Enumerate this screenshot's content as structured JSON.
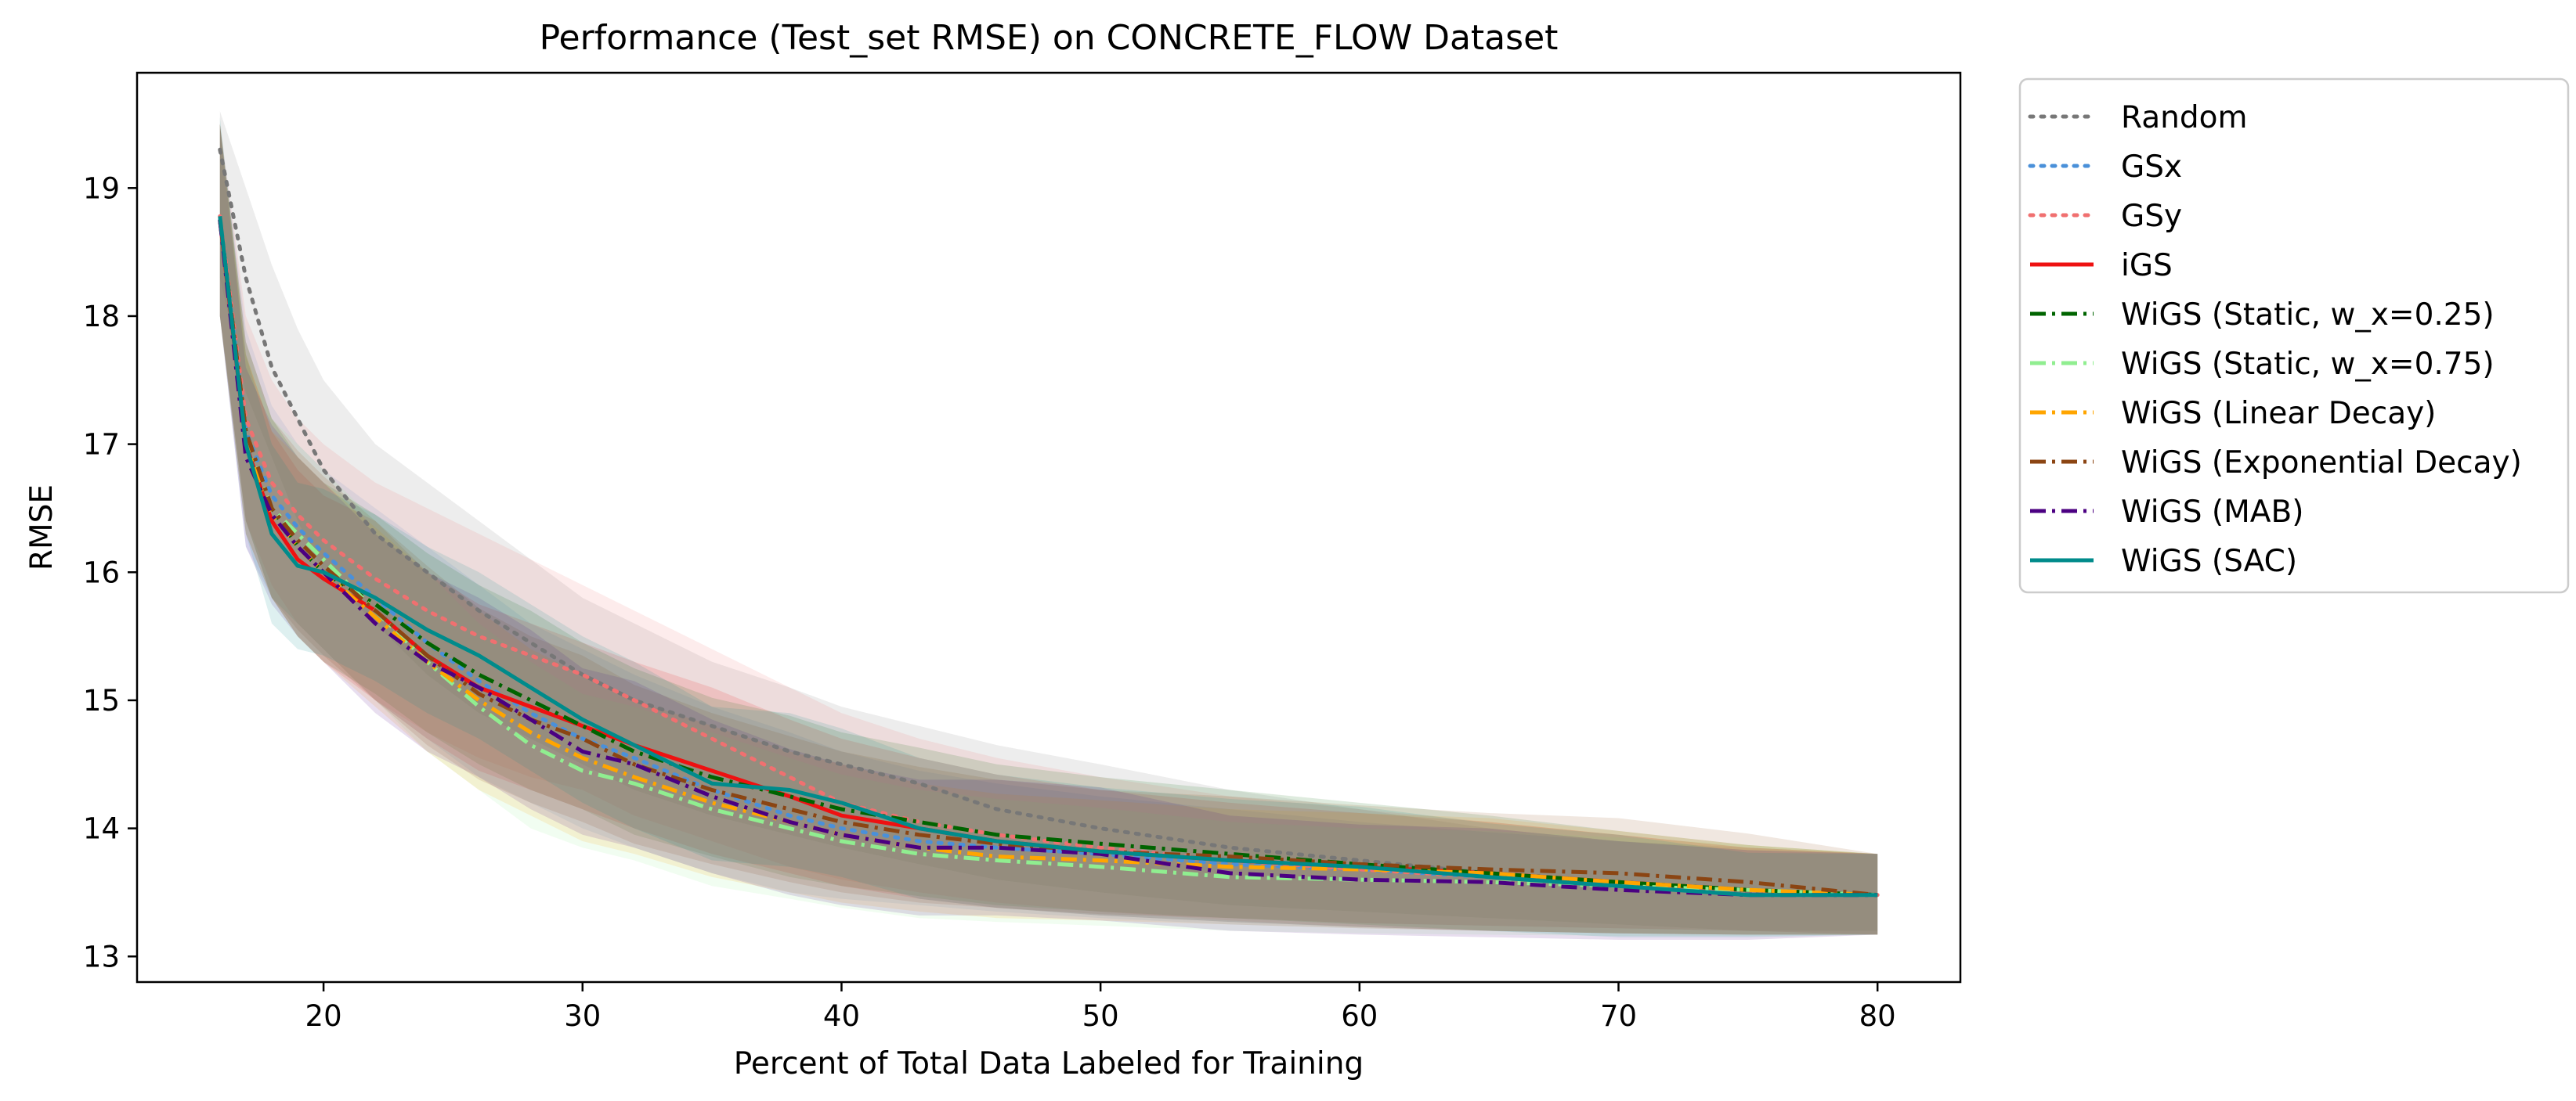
{
  "chart_data": {
    "type": "line",
    "title": "Performance (Test_set RMSE) on CONCRETE_FLOW Dataset",
    "xlabel": "Percent of Total Data Labeled for Training",
    "ylabel": "RMSE",
    "xlim": [
      12.8,
      83.2
    ],
    "ylim": [
      12.8,
      19.9
    ],
    "xticks": [
      20,
      30,
      40,
      50,
      60,
      70,
      80
    ],
    "yticks": [
      13,
      14,
      15,
      16,
      17,
      18,
      19
    ],
    "grid": false,
    "legend_position": "outside-right-top",
    "shaded_bands": "mean ± std per series",
    "x": [
      16,
      17,
      18,
      19,
      20,
      22,
      24,
      26,
      28,
      30,
      32,
      35,
      38,
      40,
      43,
      46,
      50,
      55,
      60,
      65,
      70,
      75,
      80
    ],
    "series": [
      {
        "name": "Random",
        "color": "#777777",
        "style": "dotted",
        "values": [
          19.3,
          18.3,
          17.6,
          17.2,
          16.8,
          16.3,
          16.0,
          15.7,
          15.45,
          15.2,
          15.0,
          14.8,
          14.6,
          14.5,
          14.35,
          14.15,
          14.0,
          13.85,
          13.75,
          13.65,
          13.57,
          13.5,
          13.48
        ],
        "lower": [
          18.3,
          17.4,
          16.9,
          16.4,
          16.0,
          15.6,
          15.2,
          14.9,
          14.7,
          14.5,
          14.3,
          14.1,
          13.95,
          13.85,
          13.72,
          13.6,
          13.5,
          13.4,
          13.35,
          13.3,
          13.25,
          13.2,
          13.2
        ],
        "upper": [
          19.6,
          19.0,
          18.4,
          17.9,
          17.5,
          17.0,
          16.7,
          16.4,
          16.1,
          15.8,
          15.6,
          15.3,
          15.1,
          14.95,
          14.8,
          14.65,
          14.5,
          14.3,
          14.15,
          14.0,
          13.9,
          13.85,
          13.8
        ]
      },
      {
        "name": "GSx",
        "color": "#4a90d9",
        "style": "dotted",
        "values": [
          18.75,
          17.1,
          16.6,
          16.35,
          16.15,
          15.8,
          15.45,
          15.15,
          14.9,
          14.7,
          14.55,
          14.3,
          14.1,
          14.0,
          13.9,
          13.85,
          13.8,
          13.72,
          13.68,
          13.62,
          13.58,
          13.52,
          13.48
        ],
        "lower": [
          18.0,
          16.2,
          15.8,
          15.6,
          15.4,
          15.0,
          14.7,
          14.4,
          14.2,
          14.0,
          13.85,
          13.65,
          13.5,
          13.45,
          13.4,
          13.35,
          13.3,
          13.25,
          13.22,
          13.2,
          13.18,
          13.17,
          13.17
        ],
        "upper": [
          19.5,
          17.9,
          17.3,
          17.0,
          16.8,
          16.5,
          16.2,
          15.9,
          15.6,
          15.4,
          15.2,
          14.95,
          14.75,
          14.6,
          14.45,
          14.35,
          14.25,
          14.15,
          14.05,
          13.97,
          13.9,
          13.83,
          13.8
        ]
      },
      {
        "name": "GSy",
        "color": "#f07070",
        "style": "dotted",
        "values": [
          18.78,
          17.2,
          16.7,
          16.45,
          16.25,
          15.95,
          15.7,
          15.5,
          15.35,
          15.2,
          15.0,
          14.7,
          14.4,
          14.2,
          14.05,
          13.95,
          13.85,
          13.75,
          13.68,
          13.62,
          13.57,
          13.52,
          13.48
        ],
        "lower": [
          18.0,
          16.4,
          15.9,
          15.6,
          15.4,
          15.0,
          14.75,
          14.55,
          14.4,
          14.3,
          14.1,
          13.9,
          13.7,
          13.6,
          13.5,
          13.42,
          13.35,
          13.28,
          13.23,
          13.2,
          13.18,
          13.17,
          13.17
        ],
        "upper": [
          19.5,
          18.0,
          17.5,
          17.2,
          17.0,
          16.7,
          16.5,
          16.3,
          16.1,
          15.9,
          15.7,
          15.4,
          15.1,
          14.9,
          14.7,
          14.55,
          14.4,
          14.25,
          14.15,
          14.05,
          13.95,
          13.85,
          13.8
        ]
      },
      {
        "name": "iGS",
        "color": "#ee1111",
        "style": "solid",
        "values": [
          18.75,
          17.0,
          16.4,
          16.1,
          15.95,
          15.7,
          15.35,
          15.1,
          14.95,
          14.8,
          14.65,
          14.45,
          14.25,
          14.1,
          14.0,
          13.9,
          13.82,
          13.75,
          13.7,
          13.65,
          13.58,
          13.52,
          13.48
        ],
        "lower": [
          18.0,
          16.3,
          15.8,
          15.5,
          15.3,
          15.0,
          14.7,
          14.45,
          14.3,
          14.15,
          14.0,
          13.8,
          13.65,
          13.55,
          13.45,
          13.38,
          13.32,
          13.27,
          13.23,
          13.2,
          13.18,
          13.17,
          13.17
        ],
        "upper": [
          19.5,
          17.7,
          17.1,
          16.8,
          16.6,
          16.4,
          16.0,
          15.75,
          15.6,
          15.45,
          15.3,
          15.1,
          14.85,
          14.7,
          14.55,
          14.42,
          14.3,
          14.2,
          14.12,
          14.05,
          13.95,
          13.85,
          13.8
        ]
      },
      {
        "name": "WiGS (Static, w_x=0.25)",
        "color": "#006400",
        "style": "dashdot",
        "values": [
          18.75,
          17.1,
          16.5,
          16.2,
          16.0,
          15.75,
          15.45,
          15.2,
          15.0,
          14.8,
          14.6,
          14.4,
          14.25,
          14.15,
          14.05,
          13.95,
          13.88,
          13.8,
          13.72,
          13.65,
          13.58,
          13.52,
          13.48
        ],
        "lower": [
          18.0,
          16.4,
          15.8,
          15.5,
          15.3,
          15.05,
          14.75,
          14.5,
          14.3,
          14.15,
          13.95,
          13.78,
          13.62,
          13.55,
          13.47,
          13.4,
          13.35,
          13.3,
          13.25,
          13.2,
          13.18,
          13.17,
          13.17
        ],
        "upper": [
          19.5,
          17.8,
          17.2,
          16.9,
          16.7,
          16.45,
          16.15,
          15.9,
          15.7,
          15.45,
          15.25,
          15.02,
          14.88,
          14.75,
          14.63,
          14.5,
          14.4,
          14.3,
          14.2,
          14.1,
          13.98,
          13.87,
          13.8
        ]
      },
      {
        "name": "WiGS (Static, w_x=0.75)",
        "color": "#90ee90",
        "style": "dashdot",
        "values": [
          18.75,
          17.0,
          16.5,
          16.3,
          16.1,
          15.7,
          15.3,
          14.95,
          14.65,
          14.45,
          14.35,
          14.15,
          14.0,
          13.9,
          13.8,
          13.75,
          13.7,
          13.62,
          13.6,
          13.58,
          13.55,
          13.52,
          13.48
        ],
        "lower": [
          18.0,
          16.3,
          15.8,
          15.6,
          15.4,
          15.0,
          14.6,
          14.3,
          14.0,
          13.85,
          13.75,
          13.55,
          13.45,
          13.38,
          13.3,
          13.27,
          13.24,
          13.2,
          13.18,
          13.17,
          13.16,
          13.16,
          13.17
        ],
        "upper": [
          19.5,
          17.7,
          17.2,
          17.0,
          16.8,
          16.4,
          16.0,
          15.6,
          15.3,
          15.05,
          14.95,
          14.75,
          14.55,
          14.42,
          14.3,
          14.23,
          14.16,
          14.05,
          14.0,
          13.98,
          13.93,
          13.87,
          13.8
        ]
      },
      {
        "name": "WiGS (Linear Decay)",
        "color": "#ffa500",
        "style": "dashdot",
        "values": [
          18.75,
          17.0,
          16.45,
          16.2,
          16.0,
          15.65,
          15.3,
          15.0,
          14.75,
          14.55,
          14.4,
          14.2,
          14.05,
          13.95,
          13.85,
          13.78,
          13.75,
          13.7,
          13.68,
          13.65,
          13.58,
          13.52,
          13.48
        ],
        "lower": [
          18.0,
          16.3,
          15.8,
          15.5,
          15.3,
          14.95,
          14.6,
          14.3,
          14.1,
          13.9,
          13.8,
          13.62,
          13.5,
          13.42,
          13.35,
          13.3,
          13.28,
          13.25,
          13.22,
          13.2,
          13.18,
          13.17,
          13.17
        ],
        "upper": [
          19.5,
          17.7,
          17.1,
          16.9,
          16.7,
          16.35,
          16.0,
          15.7,
          15.4,
          15.2,
          15.0,
          14.8,
          14.6,
          14.5,
          14.35,
          14.27,
          14.22,
          14.15,
          14.12,
          14.08,
          13.98,
          13.87,
          13.8
        ]
      },
      {
        "name": "WiGS (Exponential Decay)",
        "color": "#8b4513",
        "style": "dashdot",
        "values": [
          18.75,
          17.1,
          16.5,
          16.25,
          16.05,
          15.7,
          15.35,
          15.05,
          14.85,
          14.7,
          14.5,
          14.3,
          14.15,
          14.05,
          13.95,
          13.88,
          13.82,
          13.78,
          13.72,
          13.68,
          13.65,
          13.58,
          13.48
        ],
        "lower": [
          18.0,
          16.4,
          15.8,
          15.55,
          15.35,
          15.0,
          14.65,
          14.38,
          14.2,
          14.05,
          13.88,
          13.72,
          13.58,
          13.5,
          13.42,
          13.38,
          13.33,
          13.3,
          13.26,
          13.24,
          13.22,
          13.2,
          13.17
        ],
        "upper": [
          19.5,
          17.8,
          17.2,
          16.95,
          16.75,
          16.4,
          16.05,
          15.72,
          15.5,
          15.35,
          15.12,
          14.9,
          14.72,
          14.6,
          14.48,
          14.38,
          14.3,
          14.25,
          14.18,
          14.12,
          14.08,
          13.96,
          13.8
        ]
      },
      {
        "name": "WiGS (MAB)",
        "color": "#4b0082",
        "style": "dashdot",
        "values": [
          18.75,
          16.9,
          16.45,
          16.2,
          16.0,
          15.6,
          15.3,
          15.1,
          14.85,
          14.6,
          14.5,
          14.25,
          14.05,
          13.95,
          13.85,
          13.85,
          13.8,
          13.65,
          13.6,
          13.58,
          13.52,
          13.48,
          13.48
        ],
        "lower": [
          18.0,
          16.2,
          15.75,
          15.5,
          15.3,
          14.9,
          14.6,
          14.4,
          14.15,
          13.95,
          13.85,
          13.65,
          13.48,
          13.4,
          13.32,
          13.32,
          13.28,
          13.2,
          13.17,
          13.15,
          13.13,
          13.13,
          13.17
        ],
        "upper": [
          19.5,
          17.6,
          17.15,
          16.9,
          16.7,
          16.3,
          16.0,
          15.8,
          15.55,
          15.25,
          15.15,
          14.85,
          14.62,
          14.5,
          14.38,
          14.38,
          14.32,
          14.1,
          14.03,
          14.0,
          13.9,
          13.83,
          13.8
        ]
      },
      {
        "name": "WiGS (SAC)",
        "color": "#008b8b",
        "style": "solid",
        "values": [
          18.78,
          17.0,
          16.3,
          16.05,
          16.0,
          15.8,
          15.55,
          15.35,
          15.1,
          14.85,
          14.65,
          14.35,
          14.3,
          14.2,
          14.0,
          13.9,
          13.82,
          13.75,
          13.7,
          13.62,
          13.55,
          13.48,
          13.48
        ],
        "lower": [
          18.0,
          16.3,
          15.6,
          15.4,
          15.35,
          15.15,
          14.9,
          14.7,
          14.45,
          14.2,
          14.0,
          13.75,
          13.7,
          13.62,
          13.45,
          13.38,
          13.32,
          13.27,
          13.23,
          13.2,
          13.15,
          13.15,
          13.17
        ],
        "upper": [
          19.55,
          17.7,
          17.0,
          16.7,
          16.65,
          16.45,
          16.2,
          16.0,
          15.75,
          15.5,
          15.3,
          14.95,
          14.9,
          14.78,
          14.55,
          14.42,
          14.32,
          14.23,
          14.17,
          14.04,
          13.95,
          13.81,
          13.8
        ]
      }
    ]
  }
}
